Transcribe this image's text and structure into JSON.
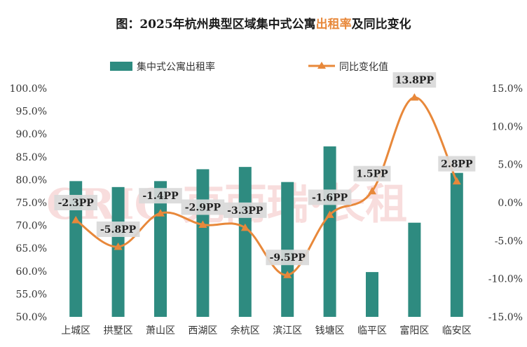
{
  "chart_data": {
    "type": "bar+line",
    "title_prefix": "图：2025年杭州典型区域集中式公寓",
    "title_highlight": "出租率",
    "title_suffix": "及同比变化",
    "categories": [
      "上城区",
      "拱墅区",
      "萧山区",
      "西湖区",
      "余杭区",
      "滨江区",
      "钱塘区",
      "临平区",
      "富阳区",
      "临安区"
    ],
    "series": [
      {
        "name": "集中式公寓出租率",
        "type": "bar",
        "axis": "left",
        "color": "#2e8b80",
        "values": [
          79.7,
          78.4,
          79.7,
          82.3,
          82.8,
          79.5,
          87.3,
          59.8,
          70.6,
          81.5
        ]
      },
      {
        "name": "同比变化值",
        "type": "line",
        "axis": "right",
        "color": "#e8883a",
        "values": [
          -2.3,
          -5.8,
          -1.4,
          -2.9,
          -3.3,
          -9.5,
          -1.6,
          1.5,
          13.8,
          2.8
        ],
        "labels": [
          "-2.3PP",
          "-5.8PP",
          "-1.4PP",
          "-2.9PP",
          "-3.3PP",
          "-9.5PP",
          "-1.6PP",
          "1.5PP",
          "13.8PP",
          "2.8PP"
        ]
      }
    ],
    "left_axis": {
      "range": [
        50,
        100
      ],
      "ticks": [
        100,
        95,
        90,
        85,
        80,
        75,
        70,
        65,
        60,
        55,
        50
      ],
      "tick_labels": [
        "100.0%",
        "95.0%",
        "90.0%",
        "85.0%",
        "80.0%",
        "75.0%",
        "70.0%",
        "65.0%",
        "60.0%",
        "55.0%",
        "50.0%"
      ]
    },
    "right_axis": {
      "range": [
        -15,
        15
      ],
      "ticks": [
        15,
        10,
        5,
        0,
        -5,
        -10,
        -15
      ],
      "tick_labels": [
        "15.0%",
        "10.0%",
        "5.0%",
        "0.0%",
        "-5.0%",
        "-10.0%",
        "-15.0%"
      ]
    },
    "legend_position": "top-center",
    "watermark": "CRIC 克而瑞·长租"
  }
}
